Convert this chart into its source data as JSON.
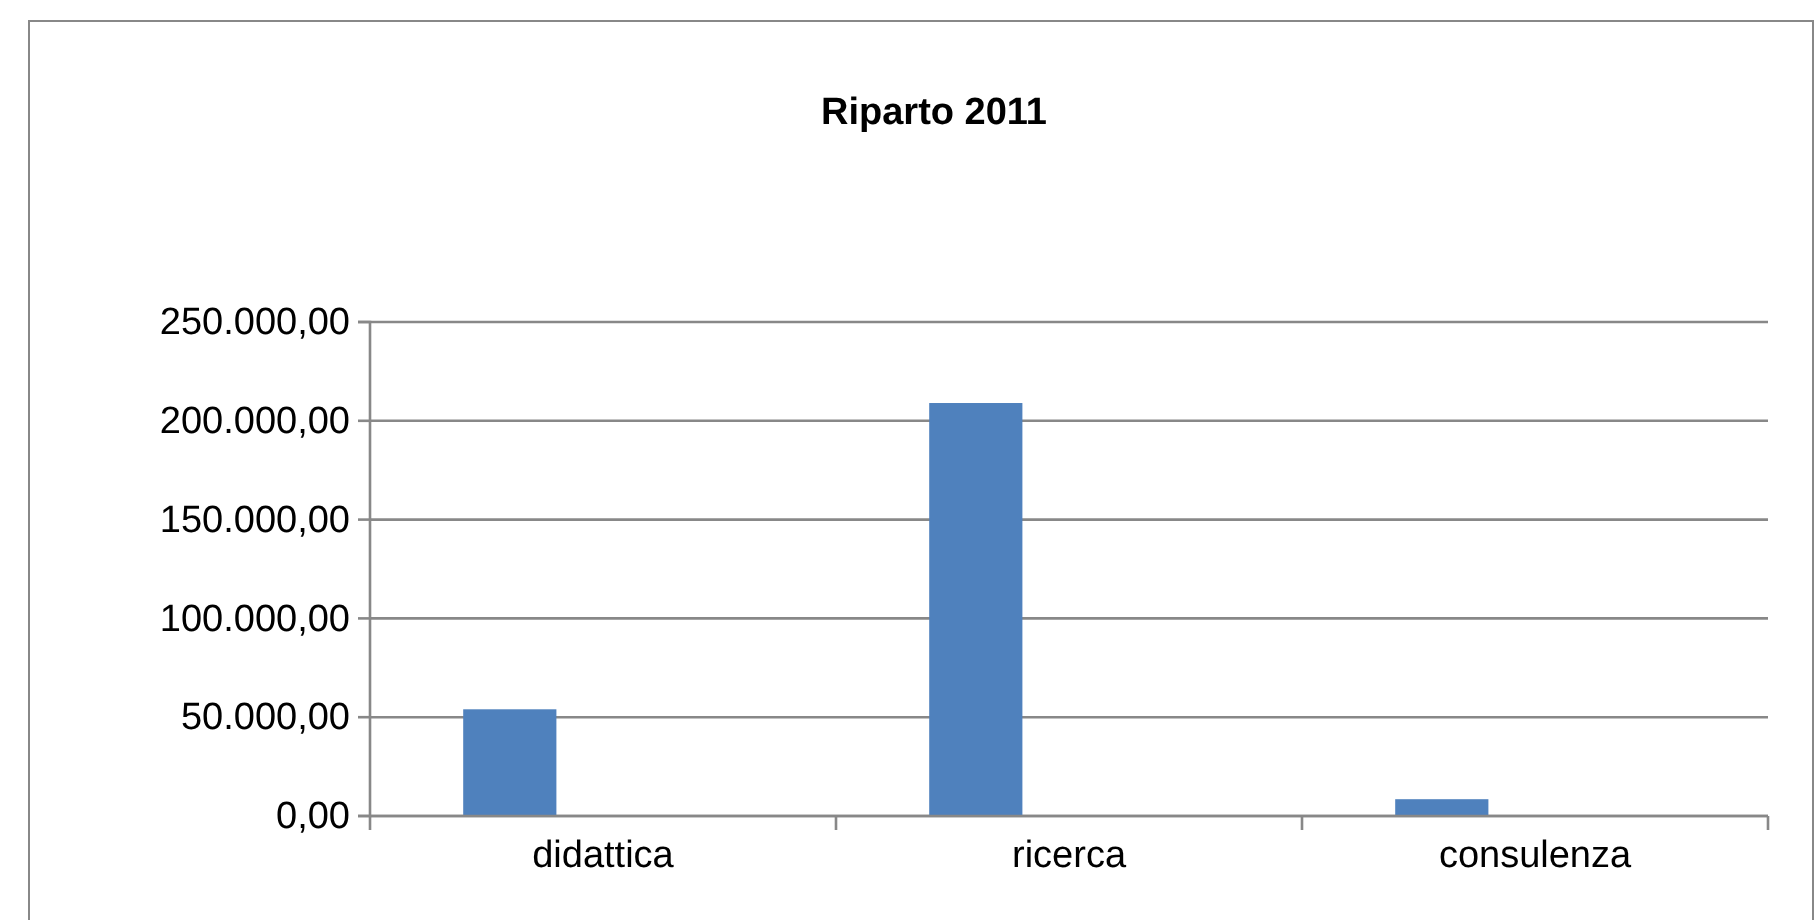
{
  "chart_data": {
    "type": "bar",
    "title": "Riparto 2011",
    "categories": [
      "didattica",
      "ricerca",
      "consulenza"
    ],
    "values": [
      54000,
      209000,
      8500
    ],
    "color": "#4f81bd",
    "ylim": [
      0,
      250000
    ],
    "yticks": [
      {
        "value": 0,
        "label": "0,00"
      },
      {
        "value": 50000,
        "label": "50.000,00"
      },
      {
        "value": 100000,
        "label": "100.000,00"
      },
      {
        "value": 150000,
        "label": "150.000,00"
      },
      {
        "value": 200000,
        "label": "200.000,00"
      },
      {
        "value": 250000,
        "label": "250.000,00"
      }
    ],
    "grid": "y"
  }
}
